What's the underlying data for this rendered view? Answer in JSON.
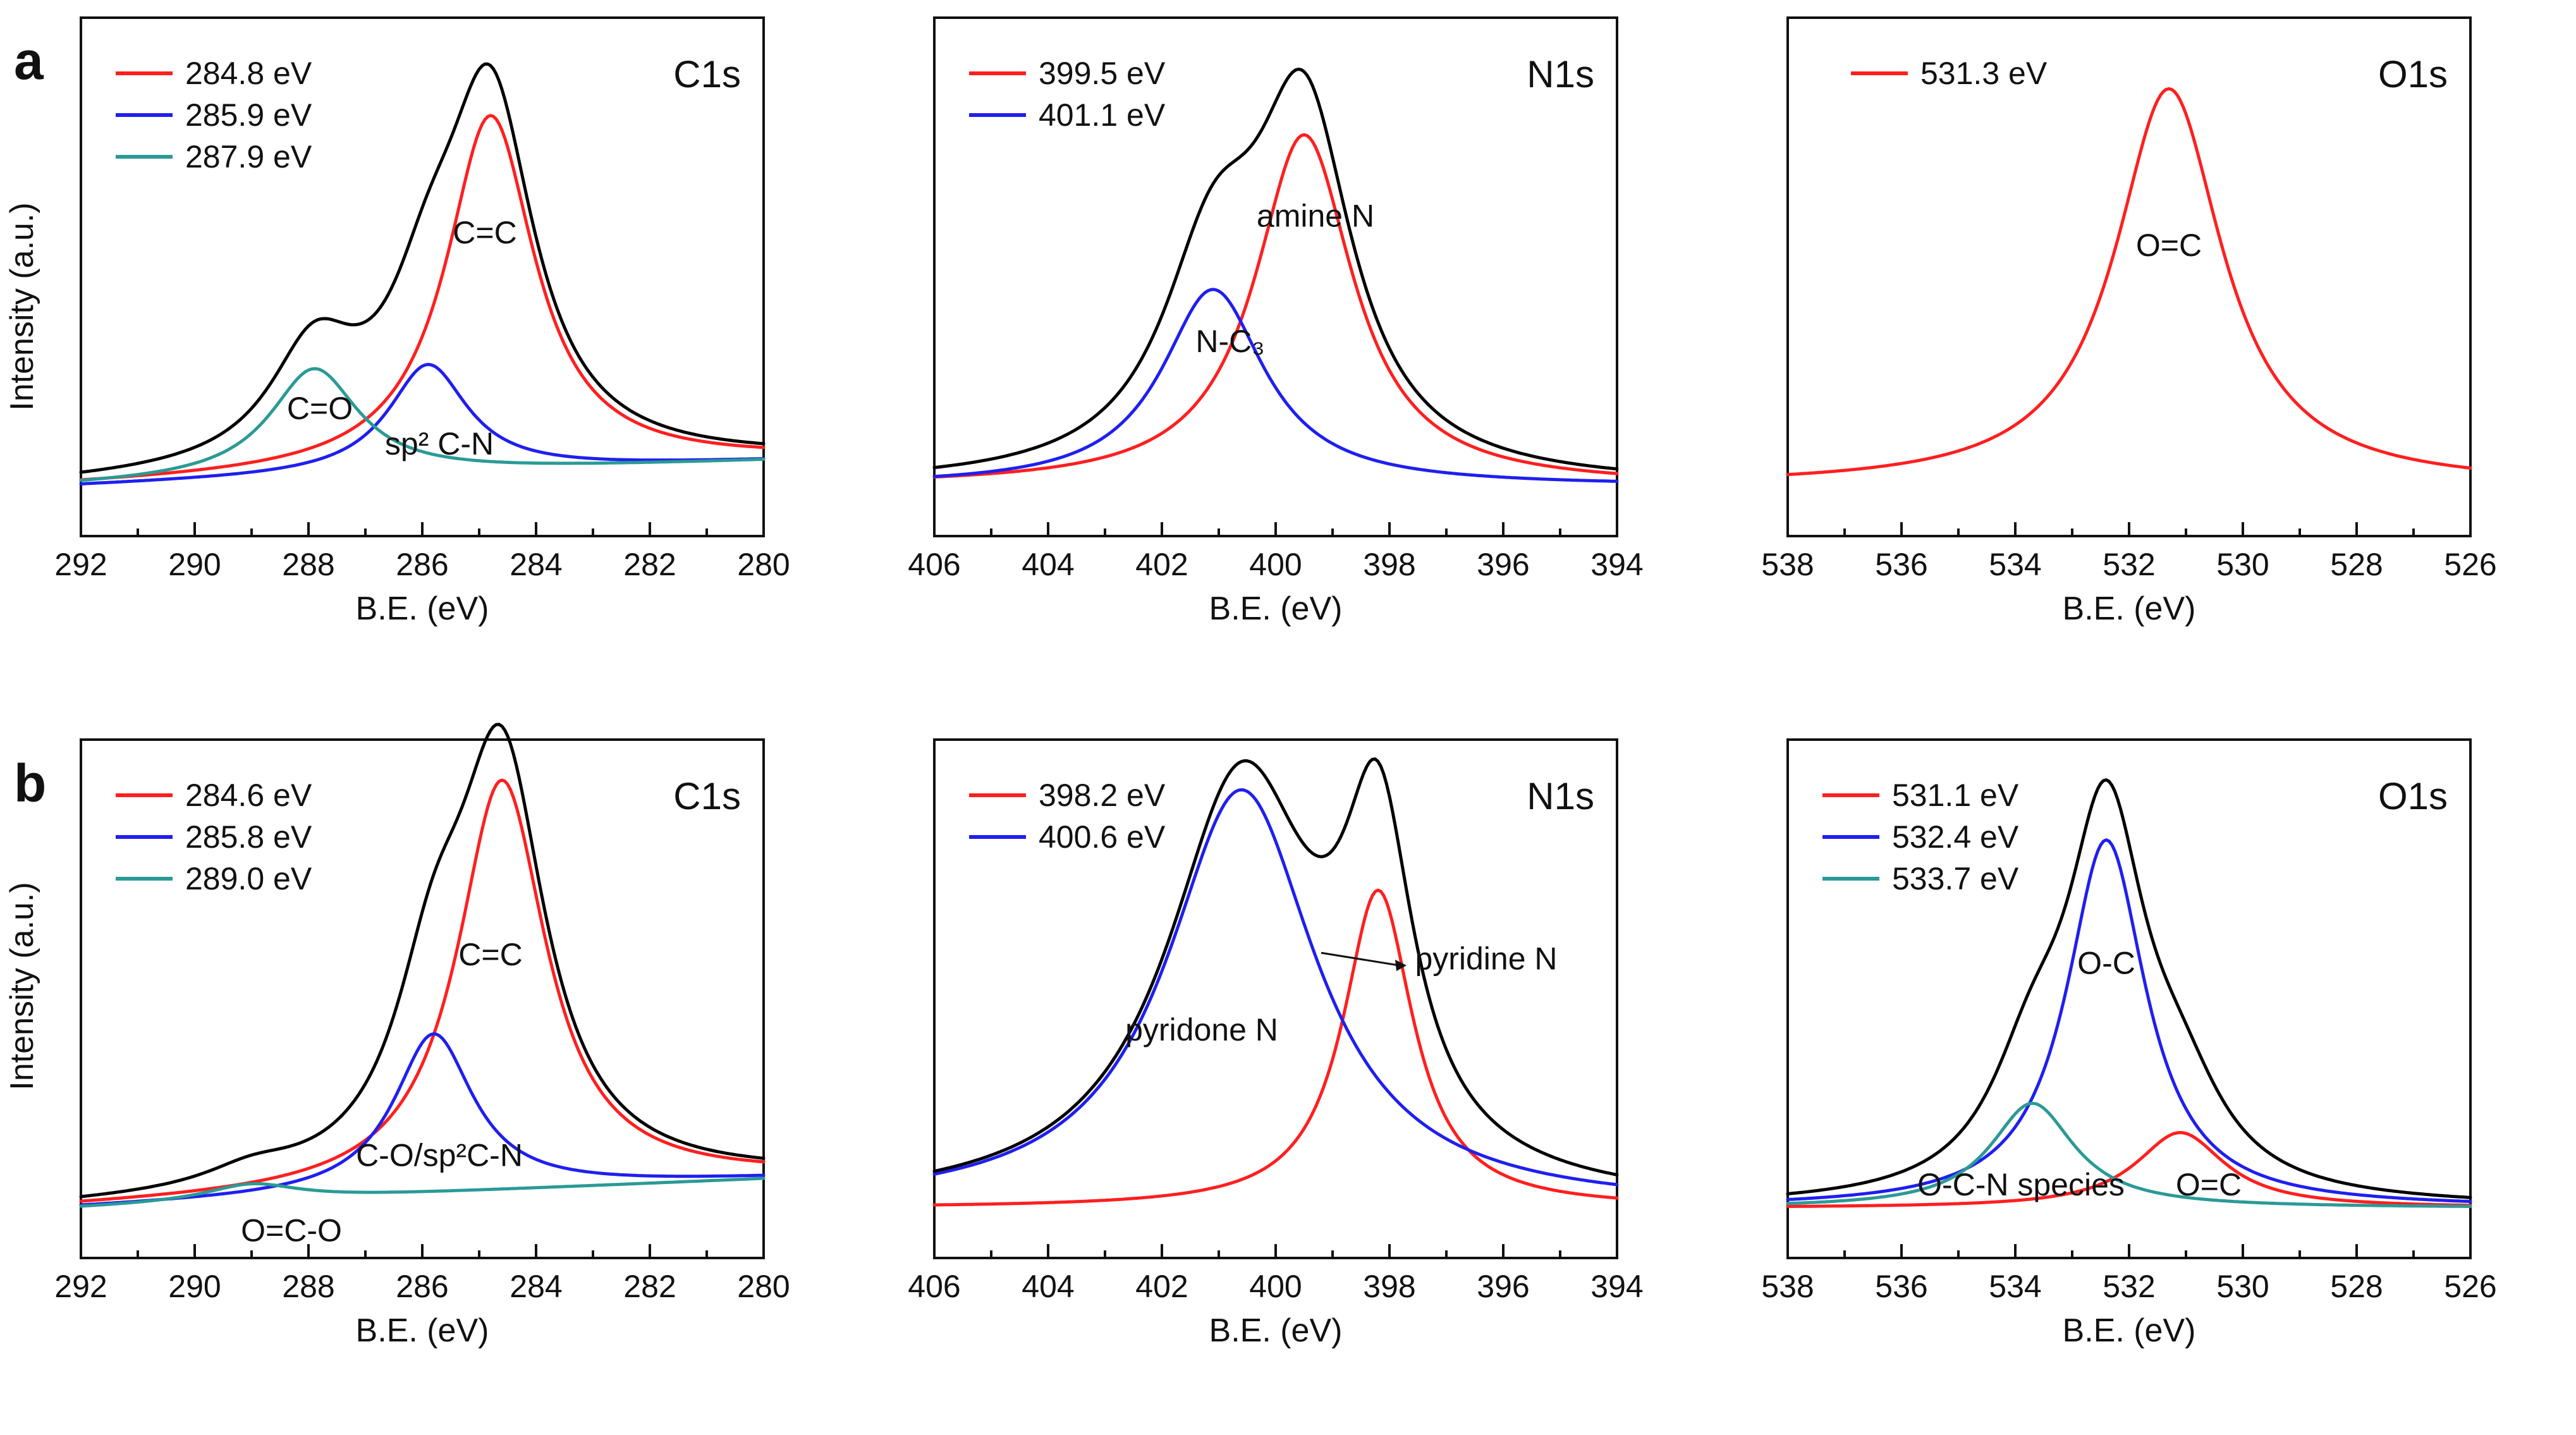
{
  "figure": {
    "panel_letters": [
      "a",
      "b"
    ],
    "y_axis_label": "Intensity (a.u.)",
    "x_axis_label": "B.E. (eV)"
  },
  "colors": {
    "envelope": "#000000",
    "red": "#ff1f1f",
    "blue": "#1f1fef",
    "teal": "#2b9a96",
    "axis": "#111111"
  },
  "chart_data": [
    {
      "type": "line",
      "row": "a",
      "title": "C1s",
      "xlabel": "B.E. (eV)",
      "ylabel": "Intensity (a.u.)",
      "xlim": [
        292,
        280
      ],
      "ylim": [
        -0.12,
        1.12
      ],
      "xticks": [
        "292",
        "290",
        "288",
        "286",
        "284",
        "282",
        "280"
      ],
      "series": [
        {
          "name": "284.8 eV",
          "color": "red",
          "center": 284.8,
          "height": 0.85,
          "width": 0.95,
          "baseline": [
            0.0,
            0.06
          ],
          "label": "C=C",
          "label_xy": [
            284.9,
            0.58
          ]
        },
        {
          "name": "285.9 eV",
          "color": "blue",
          "center": 285.9,
          "height": 0.26,
          "width": 0.85,
          "baseline": [
            0.0,
            0.06
          ],
          "label": "sp² C-N",
          "label_xy": [
            285.7,
            0.075
          ]
        },
        {
          "name": "287.9 eV",
          "color": "teal",
          "center": 287.9,
          "height": 0.26,
          "width": 0.95,
          "baseline": [
            0.0,
            0.06
          ],
          "label": "C=O",
          "label_xy": [
            287.8,
            0.16
          ]
        }
      ],
      "envelope": true,
      "legend": [
        "284.8 eV",
        "285.9 eV",
        "287.9 eV"
      ]
    },
    {
      "type": "line",
      "row": "a",
      "title": "N1s",
      "xlabel": "B.E. (eV)",
      "xlim": [
        406,
        394
      ],
      "ylim": [
        -0.12,
        1.12
      ],
      "xticks": [
        "406",
        "404",
        "402",
        "400",
        "398",
        "396",
        "394"
      ],
      "series": [
        {
          "name": "399.5 eV",
          "color": "red",
          "center": 399.5,
          "height": 0.84,
          "width": 1.05,
          "baseline": [
            0.0,
            0.0
          ],
          "label": "amine N",
          "label_xy": [
            399.3,
            0.62
          ]
        },
        {
          "name": "401.1 eV",
          "color": "blue",
          "center": 401.1,
          "height": 0.47,
          "width": 1.1,
          "baseline": [
            0.0,
            0.0
          ],
          "label": "N-C₃",
          "label_xy": [
            400.8,
            0.32
          ]
        }
      ],
      "envelope": true,
      "legend": [
        "399.5 eV",
        "401.1 eV"
      ]
    },
    {
      "type": "line",
      "row": "a",
      "title": "O1s",
      "xlabel": "B.E. (eV)",
      "xlim": [
        538,
        526
      ],
      "ylim": [
        -0.12,
        1.12
      ],
      "xticks": [
        "538",
        "536",
        "534",
        "532",
        "530",
        "528",
        "526"
      ],
      "series": [
        {
          "name": "531.3 eV",
          "color": "red",
          "center": 531.3,
          "height": 0.95,
          "width": 1.15,
          "baseline": [
            0.0,
            0.0
          ],
          "label": "O=C",
          "label_xy": [
            531.3,
            0.55
          ]
        }
      ],
      "envelope": false,
      "legend": [
        "531.3 eV"
      ]
    },
    {
      "type": "line",
      "row": "b",
      "title": "C1s",
      "xlabel": "B.E. (eV)",
      "ylabel": "Intensity (a.u.)",
      "xlim": [
        292,
        280
      ],
      "ylim": [
        -0.12,
        1.12
      ],
      "xticks": [
        "292",
        "290",
        "288",
        "286",
        "284",
        "282",
        "280"
      ],
      "series": [
        {
          "name": "284.6 eV",
          "color": "red",
          "center": 284.6,
          "height": 0.98,
          "width": 0.95,
          "baseline": [
            0.0,
            0.07
          ],
          "label": "C=C",
          "label_xy": [
            284.8,
            0.58
          ]
        },
        {
          "name": "285.8 eV",
          "color": "blue",
          "center": 285.8,
          "height": 0.38,
          "width": 0.85,
          "baseline": [
            0.0,
            0.07
          ],
          "label": "C-O/sp²C-N",
          "label_xy": [
            285.7,
            0.1
          ]
        },
        {
          "name": "289.0 eV",
          "color": "teal",
          "center": 289.0,
          "height": 0.04,
          "width": 1.0,
          "baseline": [
            0.0,
            0.07
          ],
          "label": "O=C-O",
          "label_xy": [
            288.3,
            -0.08
          ]
        }
      ],
      "envelope": true,
      "legend": [
        "284.6 eV",
        "285.8 eV",
        "289.0 eV"
      ]
    },
    {
      "type": "line",
      "row": "b",
      "title": "N1s",
      "xlabel": "B.E. (eV)",
      "xlim": [
        406,
        394
      ],
      "ylim": [
        -0.12,
        1.12
      ],
      "xticks": [
        "406",
        "404",
        "402",
        "400",
        "398",
        "396",
        "394"
      ],
      "series": [
        {
          "name": "398.2 eV",
          "color": "red",
          "center": 398.2,
          "height": 0.76,
          "width": 0.75,
          "baseline": [
            0.0,
            0.0
          ],
          "label": "pyridine N",
          "label_xy": [
            396.3,
            0.57
          ]
        },
        {
          "name": "400.6 eV",
          "color": "blue",
          "center": 400.6,
          "height": 1.0,
          "width": 1.6,
          "baseline": [
            0.0,
            0.0
          ],
          "label": "pyridone N",
          "label_xy": [
            401.3,
            0.4
          ]
        }
      ],
      "envelope": true,
      "legend": [
        "398.2 eV",
        "400.6 eV"
      ]
    },
    {
      "type": "line",
      "row": "b",
      "title": "O1s",
      "xlabel": "B.E. (eV)",
      "xlim": [
        538,
        526
      ],
      "ylim": [
        -0.12,
        1.12
      ],
      "xticks": [
        "538",
        "536",
        "534",
        "532",
        "530",
        "528",
        "526"
      ],
      "series": [
        {
          "name": "531.1 eV",
          "color": "red",
          "center": 531.1,
          "height": 0.18,
          "width": 0.95,
          "baseline": [
            0.0,
            0.0
          ],
          "label": "O=C",
          "label_xy": [
            530.6,
            0.03
          ]
        },
        {
          "name": "532.4 eV",
          "color": "blue",
          "center": 532.4,
          "height": 0.88,
          "width": 0.85,
          "baseline": [
            0.0,
            0.0
          ],
          "label": "O-C",
          "label_xy": [
            532.4,
            0.56
          ]
        },
        {
          "name": "533.7 eV",
          "color": "teal",
          "center": 533.7,
          "height": 0.25,
          "width": 0.9,
          "baseline": [
            0.0,
            0.0
          ],
          "label": "O-C-N species",
          "label_xy": [
            533.9,
            0.03
          ]
        }
      ],
      "envelope": true,
      "legend": [
        "531.1 eV",
        "532.4 eV",
        "533.7 eV"
      ]
    }
  ]
}
